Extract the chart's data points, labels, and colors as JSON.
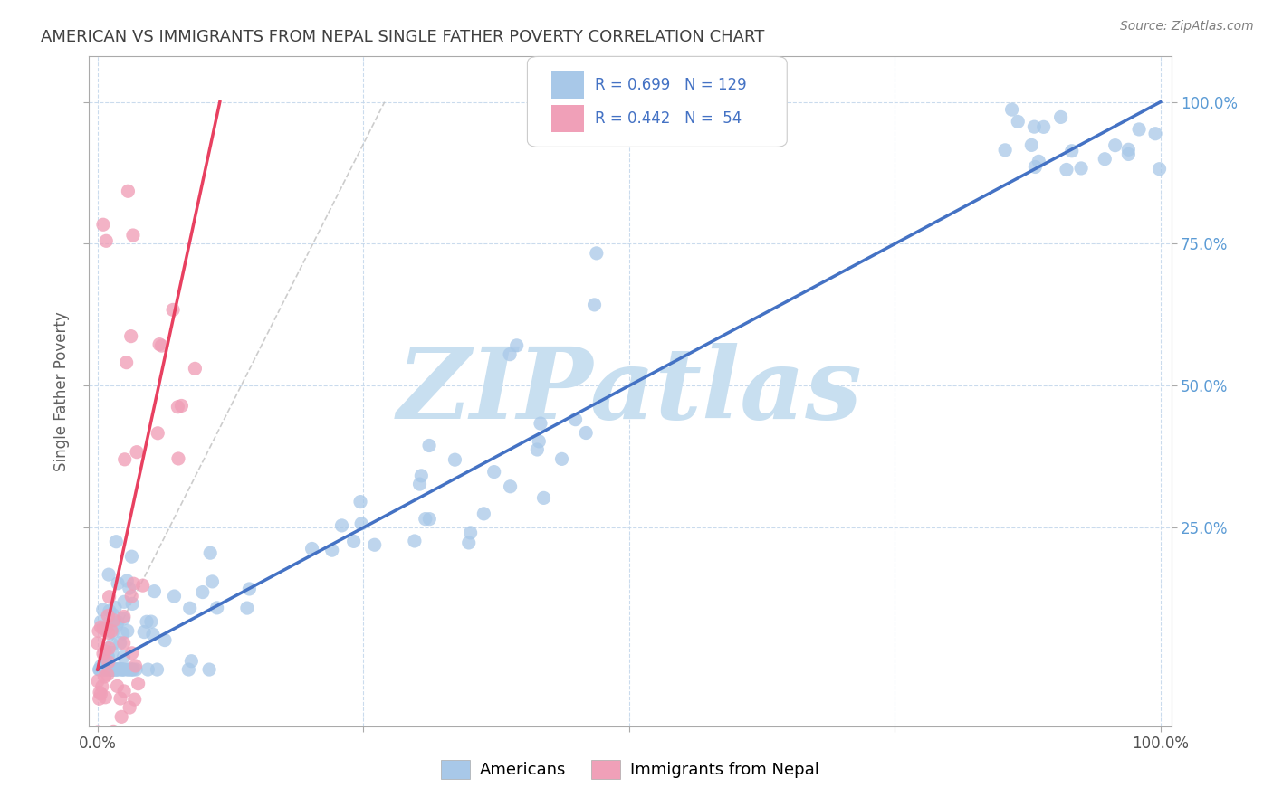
{
  "title": "AMERICAN VS IMMIGRANTS FROM NEPAL SINGLE FATHER POVERTY CORRELATION CHART",
  "source": "Source: ZipAtlas.com",
  "ylabel": "Single Father Poverty",
  "watermark": "ZIPatlas",
  "legend_blue_R": "0.699",
  "legend_blue_N": "129",
  "legend_pink_R": "0.442",
  "legend_pink_N": " 54",
  "legend_label_blue": "Americans",
  "legend_label_pink": "Immigrants from Nepal",
  "blue_color": "#A8C8E8",
  "pink_color": "#F0A0B8",
  "blue_line_color": "#4472C4",
  "pink_line_color": "#E84060",
  "diagonal_color": "#C0C0C0",
  "background_color": "#FFFFFF",
  "title_color": "#404040",
  "source_color": "#808080",
  "axis_label_color": "#606060",
  "right_axis_color": "#5B9BD5",
  "legend_text_color": "#4472C4",
  "watermark_color": "#C8DFF0"
}
